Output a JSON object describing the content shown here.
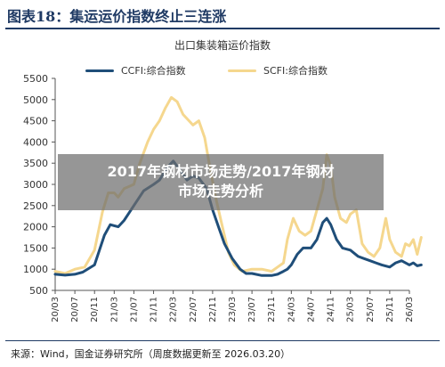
{
  "figure": {
    "title": "图表18：集运运价指数终止三连涨",
    "source": "来源：Wind，国金证券研究所（周度数据更新至 2026.03.20）"
  },
  "overlay": {
    "line1": "2017年钢材市场走势/2017年钢材",
    "line2": "市场走势分析"
  },
  "colors": {
    "ccfi": "#1f4e79",
    "scfi": "#f5d78e",
    "title": "#1f3a64",
    "axis": "#555555"
  },
  "chart_data": {
    "type": "line",
    "title": "出口集装箱运价指数",
    "xlabel": "",
    "ylabel": "",
    "ylim": [
      500,
      5500
    ],
    "yticks": [
      "500",
      "1000",
      "1500",
      "2000",
      "2500",
      "3000",
      "3500",
      "4000",
      "4500",
      "5000",
      "5500"
    ],
    "xticks": [
      "20/03",
      "20/07",
      "20/11",
      "21/03",
      "21/07",
      "21/11",
      "22/03",
      "22/07",
      "22/11",
      "23/03",
      "23/07",
      "23/11",
      "24/03",
      "24/07",
      "24/11",
      "25/03",
      "25/07",
      "25/11",
      "26/03"
    ],
    "legend_position": "top",
    "grid": false,
    "series": [
      {
        "name": "CCFI:综合指数",
        "color": "#1f4e79",
        "points": [
          [
            0,
            880
          ],
          [
            0.5,
            860
          ],
          [
            1,
            880
          ],
          [
            1.4,
            930
          ],
          [
            2,
            1100
          ],
          [
            2.5,
            1800
          ],
          [
            2.8,
            2050
          ],
          [
            3.2,
            2000
          ],
          [
            3.5,
            2150
          ],
          [
            4,
            2500
          ],
          [
            4.5,
            2850
          ],
          [
            5,
            3000
          ],
          [
            5.3,
            3100
          ],
          [
            5.7,
            3400
          ],
          [
            6,
            3550
          ],
          [
            6.4,
            3300
          ],
          [
            6.7,
            3100
          ],
          [
            7,
            3200
          ],
          [
            7.3,
            3150
          ],
          [
            7.7,
            2900
          ],
          [
            8,
            2400
          ],
          [
            8.3,
            2000
          ],
          [
            8.6,
            1600
          ],
          [
            9,
            1250
          ],
          [
            9.4,
            1000
          ],
          [
            9.7,
            900
          ],
          [
            10,
            900
          ],
          [
            10.5,
            850
          ],
          [
            11,
            850
          ],
          [
            11.3,
            880
          ],
          [
            11.6,
            950
          ],
          [
            11.8,
            1000
          ],
          [
            12,
            1100
          ],
          [
            12.3,
            1350
          ],
          [
            12.6,
            1500
          ],
          [
            13,
            1500
          ],
          [
            13.3,
            1700
          ],
          [
            13.6,
            2100
          ],
          [
            13.8,
            2200
          ],
          [
            14,
            2050
          ],
          [
            14.3,
            1700
          ],
          [
            14.6,
            1500
          ],
          [
            15,
            1450
          ],
          [
            15.4,
            1300
          ],
          [
            15.7,
            1250
          ],
          [
            16,
            1200
          ],
          [
            16.3,
            1150
          ],
          [
            16.6,
            1100
          ],
          [
            17,
            1050
          ],
          [
            17.3,
            1150
          ],
          [
            17.6,
            1200
          ],
          [
            18,
            1100
          ],
          [
            18.2,
            1150
          ],
          [
            18.4,
            1080
          ],
          [
            18.6,
            1100
          ]
        ]
      },
      {
        "name": "SCFI:综合指数",
        "color": "#f5d78e",
        "points": [
          [
            0,
            950
          ],
          [
            0.5,
            900
          ],
          [
            1,
            1000
          ],
          [
            1.5,
            1050
          ],
          [
            2,
            1450
          ],
          [
            2.4,
            2350
          ],
          [
            2.7,
            2800
          ],
          [
            3,
            2800
          ],
          [
            3.2,
            2700
          ],
          [
            3.5,
            2900
          ],
          [
            4,
            3000
          ],
          [
            4.3,
            3500
          ],
          [
            4.7,
            4000
          ],
          [
            5,
            4300
          ],
          [
            5.3,
            4500
          ],
          [
            5.6,
            4800
          ],
          [
            5.9,
            5050
          ],
          [
            6.2,
            4950
          ],
          [
            6.5,
            4650
          ],
          [
            6.8,
            4500
          ],
          [
            7,
            4400
          ],
          [
            7.3,
            4500
          ],
          [
            7.6,
            4100
          ],
          [
            7.9,
            3300
          ],
          [
            8.2,
            2600
          ],
          [
            8.5,
            2000
          ],
          [
            8.8,
            1400
          ],
          [
            9.1,
            1100
          ],
          [
            9.5,
            950
          ],
          [
            10,
            1000
          ],
          [
            10.5,
            1000
          ],
          [
            11,
            950
          ],
          [
            11.3,
            1050
          ],
          [
            11.6,
            1150
          ],
          [
            11.8,
            1700
          ],
          [
            12.1,
            2200
          ],
          [
            12.4,
            1900
          ],
          [
            12.7,
            1800
          ],
          [
            13,
            1900
          ],
          [
            13.3,
            2400
          ],
          [
            13.6,
            2900
          ],
          [
            13.8,
            3700
          ],
          [
            14,
            3450
          ],
          [
            14.2,
            2700
          ],
          [
            14.5,
            2200
          ],
          [
            14.8,
            2100
          ],
          [
            15,
            2300
          ],
          [
            15.3,
            2400
          ],
          [
            15.6,
            1600
          ],
          [
            15.9,
            1400
          ],
          [
            16.2,
            1300
          ],
          [
            16.5,
            1500
          ],
          [
            16.8,
            2200
          ],
          [
            17,
            1700
          ],
          [
            17.3,
            1400
          ],
          [
            17.6,
            1300
          ],
          [
            17.8,
            1600
          ],
          [
            18,
            1550
          ],
          [
            18.2,
            1700
          ],
          [
            18.4,
            1350
          ],
          [
            18.6,
            1750
          ]
        ]
      }
    ]
  }
}
